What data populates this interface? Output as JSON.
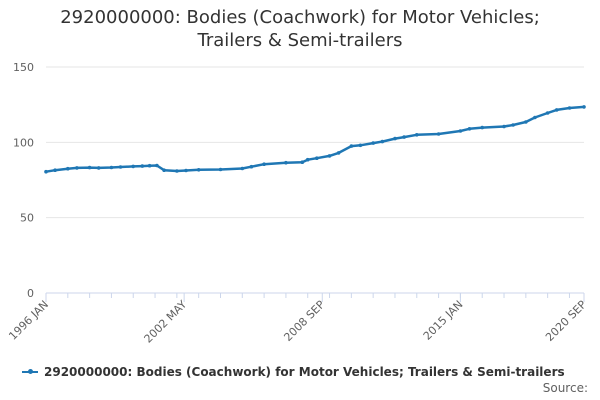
{
  "chart_data": {
    "type": "line",
    "title_lines": [
      "2920000000: Bodies (Coachwork) for Motor Vehicles;",
      "Trailers & Semi-trailers"
    ],
    "xlabel": "",
    "ylabel": "",
    "ylim": [
      0,
      150
    ],
    "yticks": [
      0,
      50,
      100,
      150
    ],
    "xlim": [
      "1996-01",
      "2020-09"
    ],
    "xticks": [
      "1996 JAN",
      "2002 MAY",
      "2008 SEP",
      "2015 JAN",
      "2020 SEP"
    ],
    "grid": true,
    "legend_position": "bottom",
    "color": "#1f77b4",
    "series": [
      {
        "name": "2920000000: Bodies (Coachwork) for Motor Vehicles; Trailers & Semi-trailers",
        "points": [
          [
            "1996-01",
            80.5
          ],
          [
            "1996-06",
            81.5
          ],
          [
            "1997-01",
            82.5
          ],
          [
            "1997-06",
            83.0
          ],
          [
            "1998-01",
            83.2
          ],
          [
            "1998-06",
            83.0
          ],
          [
            "1999-01",
            83.3
          ],
          [
            "1999-06",
            83.6
          ],
          [
            "2000-01",
            84.0
          ],
          [
            "2000-06",
            84.2
          ],
          [
            "2000-10",
            84.5
          ],
          [
            "2001-02",
            84.6
          ],
          [
            "2001-06",
            81.5
          ],
          [
            "2002-01",
            81.0
          ],
          [
            "2002-06",
            81.3
          ],
          [
            "2003-01",
            81.8
          ],
          [
            "2004-01",
            82.0
          ],
          [
            "2005-01",
            82.6
          ],
          [
            "2005-06",
            83.8
          ],
          [
            "2006-01",
            85.5
          ],
          [
            "2007-01",
            86.5
          ],
          [
            "2007-10",
            86.8
          ],
          [
            "2008-01",
            88.5
          ],
          [
            "2008-06",
            89.5
          ],
          [
            "2009-01",
            91.0
          ],
          [
            "2009-06",
            93.0
          ],
          [
            "2010-01",
            97.5
          ],
          [
            "2010-06",
            98.0
          ],
          [
            "2011-01",
            99.5
          ],
          [
            "2011-06",
            100.5
          ],
          [
            "2012-01",
            102.5
          ],
          [
            "2012-06",
            103.5
          ],
          [
            "2013-01",
            105.0
          ],
          [
            "2014-01",
            105.5
          ],
          [
            "2015-01",
            107.5
          ],
          [
            "2015-06",
            109.0
          ],
          [
            "2016-01",
            109.8
          ],
          [
            "2017-01",
            110.5
          ],
          [
            "2017-06",
            111.5
          ],
          [
            "2018-01",
            113.5
          ],
          [
            "2018-06",
            116.5
          ],
          [
            "2019-01",
            119.5
          ],
          [
            "2019-06",
            121.5
          ],
          [
            "2020-01",
            122.8
          ],
          [
            "2020-09",
            123.5
          ]
        ]
      }
    ]
  },
  "source_label": "Source:"
}
